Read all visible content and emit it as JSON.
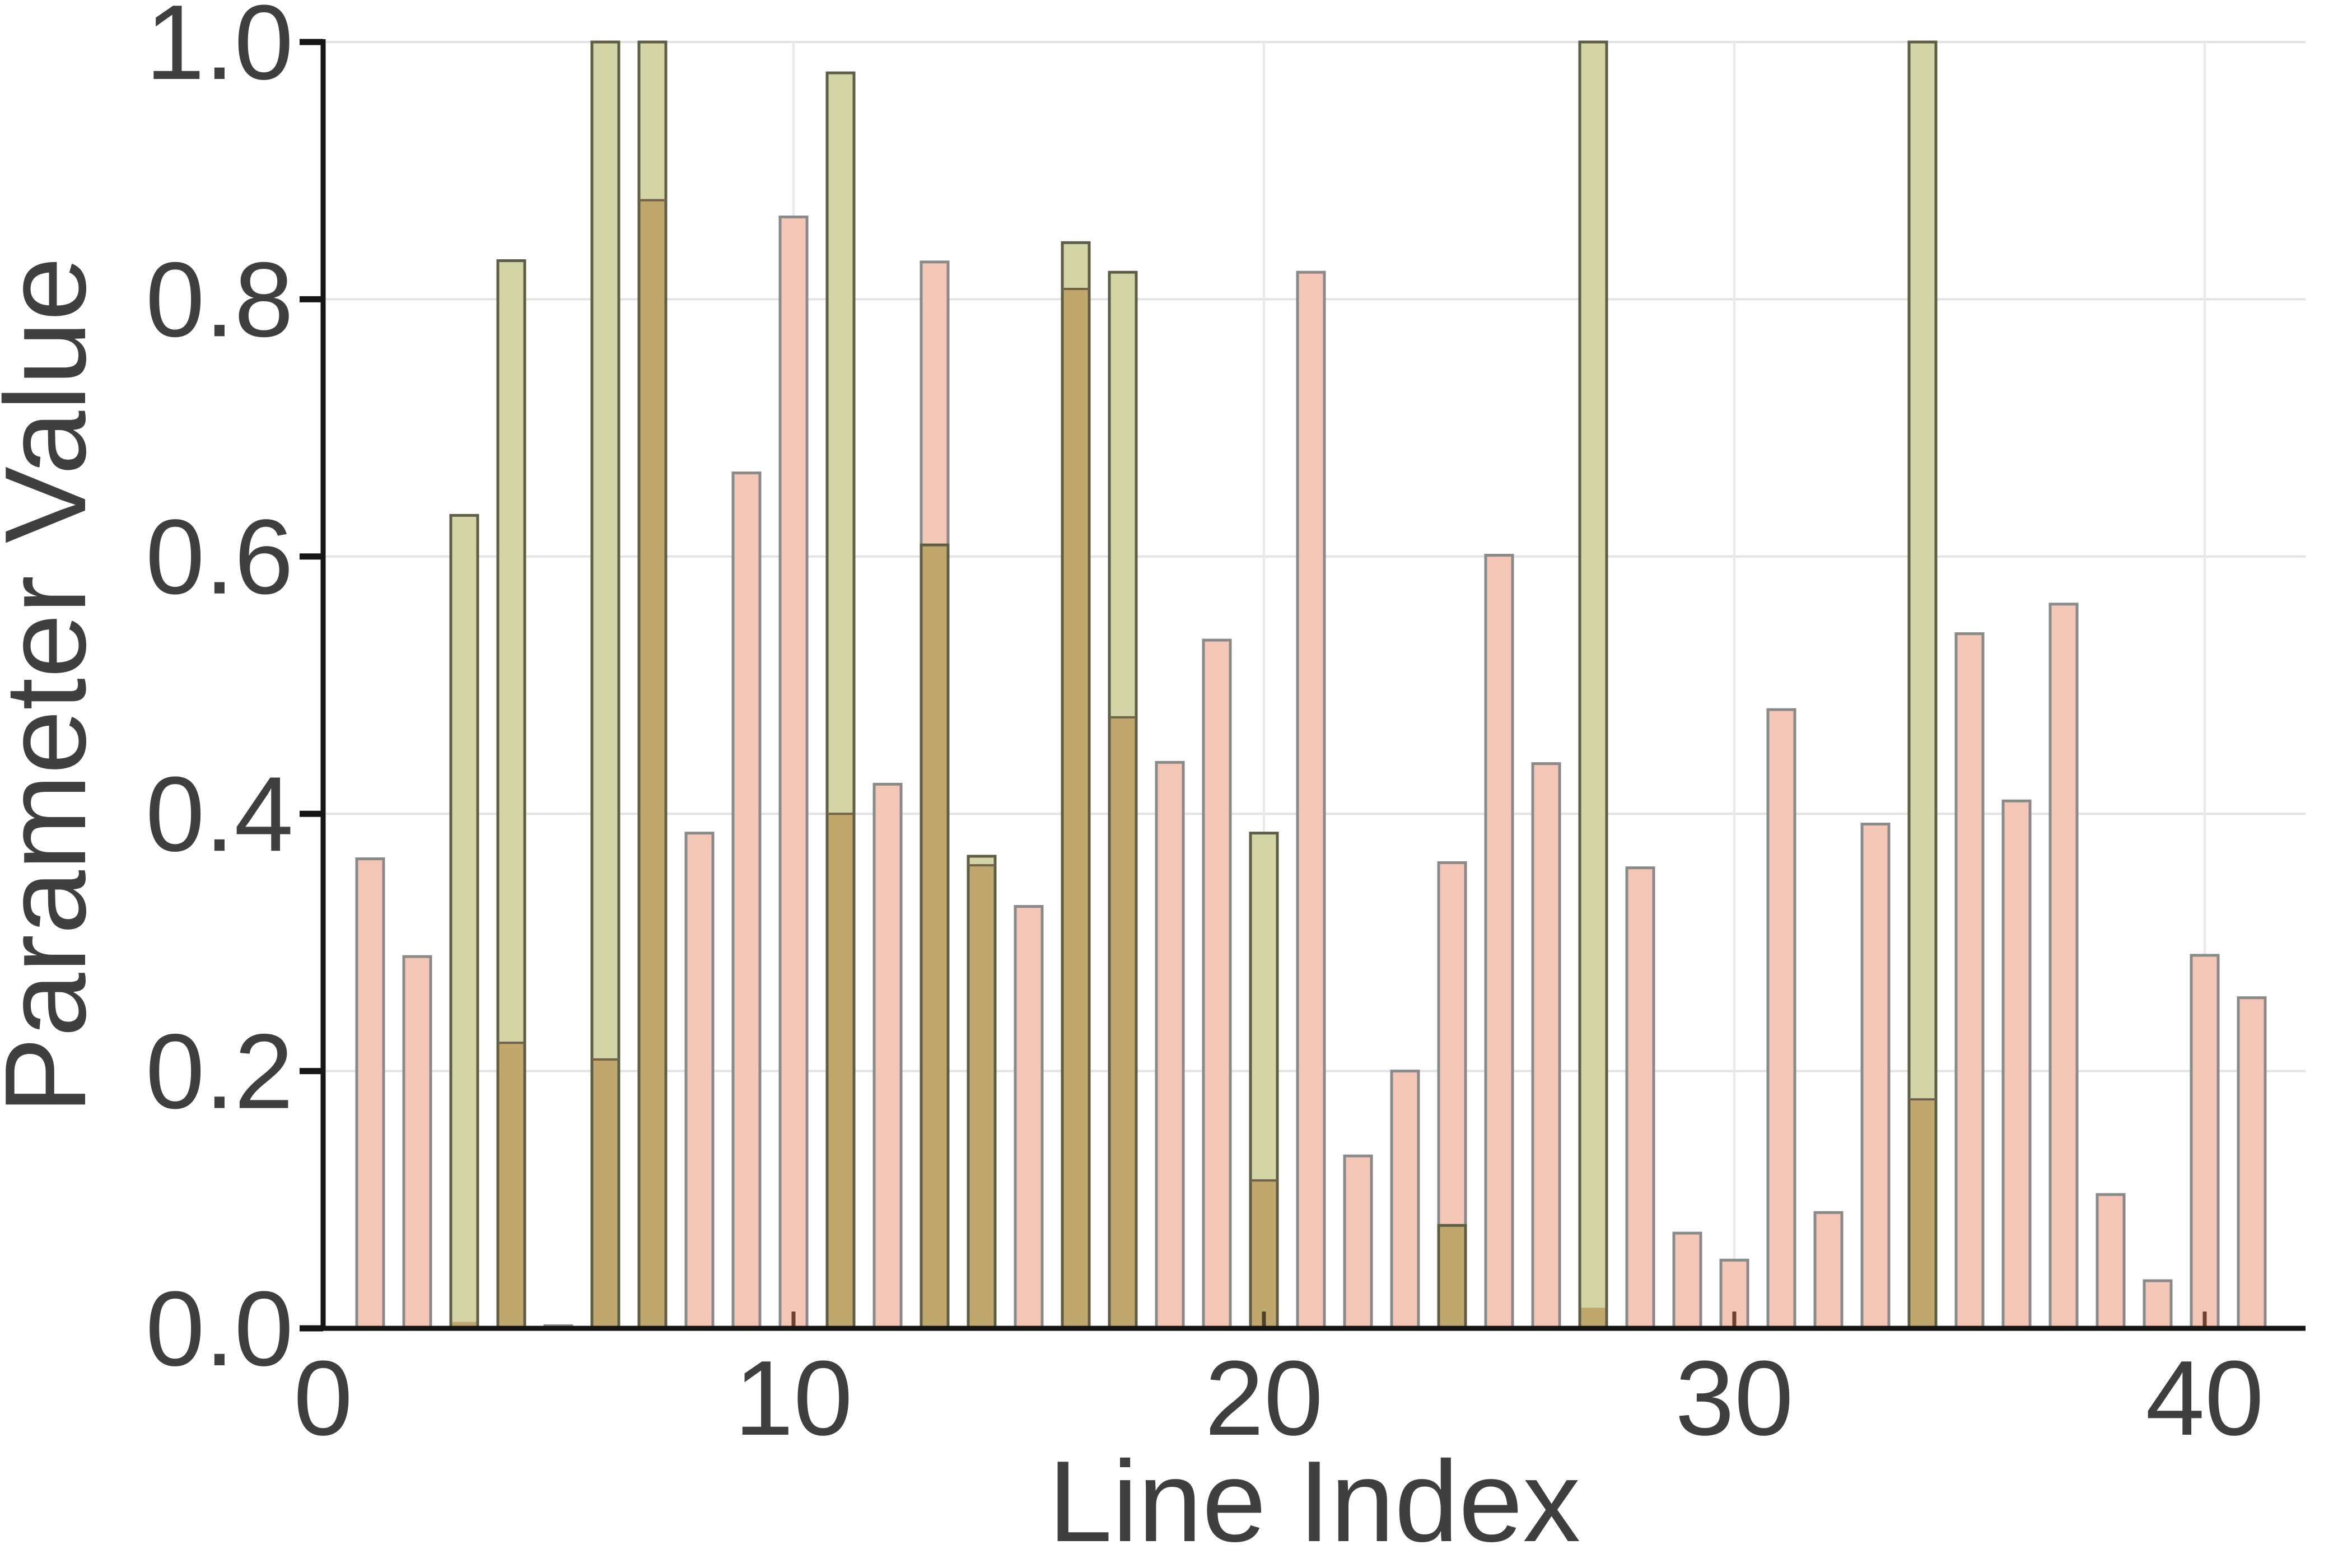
{
  "chart_data": {
    "type": "bar",
    "title": "",
    "xlabel": "Line Index",
    "ylabel": "Parameter Value",
    "x": [
      1,
      2,
      3,
      4,
      5,
      6,
      7,
      8,
      9,
      10,
      11,
      12,
      13,
      14,
      15,
      16,
      17,
      18,
      19,
      20,
      21,
      22,
      23,
      24,
      25,
      26,
      27,
      28,
      29,
      30,
      31,
      32,
      33,
      34,
      35,
      36,
      37,
      38,
      39,
      40,
      41
    ],
    "series": [
      {
        "name": "salmon-bars",
        "values": [
          0.365,
          0.289,
          0.005,
          0.222,
          0.002,
          0.209,
          0.877,
          0.385,
          0.665,
          0.864,
          0.4,
          0.423,
          0.829,
          0.36,
          0.328,
          0.808,
          0.475,
          0.44,
          0.535,
          0.115,
          0.821,
          0.134,
          0.2,
          0.362,
          0.601,
          0.439,
          0.016,
          0.358,
          0.074,
          0.053,
          0.481,
          0.09,
          0.392,
          0.178,
          0.54,
          0.41,
          0.563,
          0.104,
          0.037,
          0.29,
          0.257
        ]
      },
      {
        "name": "olive-bars",
        "values": [
          null,
          null,
          0.632,
          0.83,
          null,
          1.0,
          1.0,
          null,
          null,
          null,
          0.976,
          null,
          0.609,
          0.367,
          null,
          0.844,
          0.821,
          null,
          null,
          0.385,
          null,
          null,
          null,
          0.08,
          null,
          null,
          1.0,
          null,
          null,
          null,
          null,
          null,
          null,
          1.0,
          null,
          null,
          null,
          null,
          null,
          null,
          null
        ]
      }
    ],
    "xticks": [
      0,
      10,
      20,
      30,
      40
    ],
    "ytick_labels": [
      "0.0",
      "0.2",
      "0.4",
      "0.6",
      "0.8",
      "1.0"
    ],
    "ytick_values": [
      0.0,
      0.2,
      0.4,
      0.6,
      0.8,
      1.0
    ],
    "xlim": [
      0,
      42.1
    ],
    "ylim": [
      0,
      1.0
    ],
    "grid": true,
    "legend": "none"
  },
  "style": {
    "salmon_fill": "#F4C6B6",
    "salmon_stroke": "#8A8A8A",
    "olive_fill": "#D3D5A6",
    "olive_stroke": "#5E5E46",
    "overlap_fill": "#C0A76E",
    "overlap_seam": "#71624a",
    "grid_color_h": "#E3E3E3",
    "grid_color_v": "#E9E9E9",
    "spine_color": "#161616",
    "tick_inner_covered_salmon": "#6e4032",
    "tick_inner_covered_overlap": "#4f4129",
    "tick_inner_free": "#222222",
    "text_color": "#3f3f3f"
  }
}
